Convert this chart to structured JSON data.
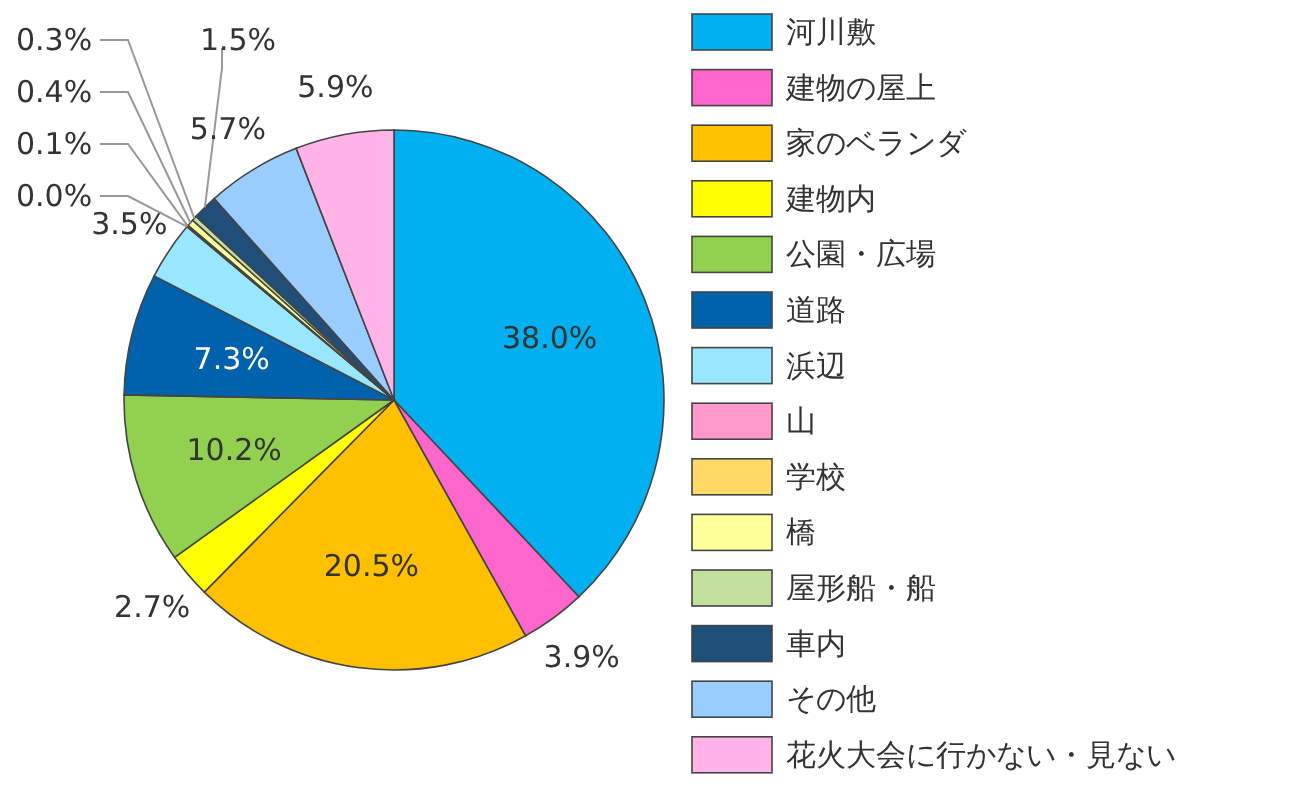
{
  "chart_data": {
    "type": "pie",
    "legend": "right",
    "categories": [
      "河川敷",
      "建物の屋上",
      "家のベランダ",
      "建物内",
      "公園・広場",
      "道路",
      "浜辺",
      "山",
      "学校",
      "橋",
      "屋形船・船",
      "車内",
      "その他",
      "花火大会に行かない・見ない"
    ],
    "values": [
      38.0,
      3.9,
      20.5,
      2.7,
      10.2,
      7.3,
      3.5,
      0.0,
      0.1,
      0.4,
      0.3,
      1.5,
      5.7,
      5.9
    ],
    "colors": [
      "#00b0f0",
      "#ff66cc",
      "#ffc000",
      "#ffff00",
      "#92d050",
      "#0062ac",
      "#99e6ff",
      "#ff99cc",
      "#ffd966",
      "#ffff99",
      "#c4e0a0",
      "#1f4e79",
      "#99ccff",
      "#ffb3e6"
    ],
    "value_labels": [
      "38.0%",
      "3.9%",
      "20.5%",
      "2.7%",
      "10.2%",
      "7.3%",
      "3.5%",
      "0.0%",
      "0.1%",
      "0.4%",
      "0.3%",
      "1.5%",
      "5.7%",
      "5.9%"
    ]
  }
}
